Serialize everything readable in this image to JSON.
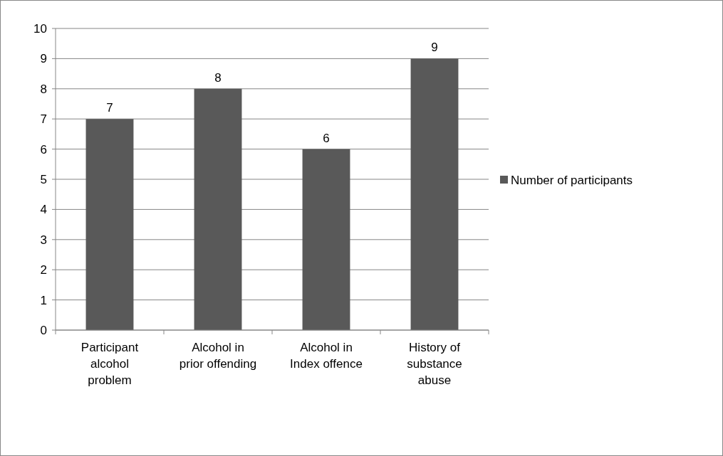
{
  "chart_data": {
    "type": "bar",
    "categories": [
      "Participant alcohol problem",
      "Alcohol in prior offending",
      "Alcohol in Index offence",
      "History of substance abuse"
    ],
    "series": [
      {
        "name": "Number of participants",
        "color": "#595959",
        "values": [
          7,
          8,
          6,
          9
        ]
      }
    ],
    "ylim": [
      0,
      10
    ],
    "yticks": [
      0,
      1,
      2,
      3,
      4,
      5,
      6,
      7,
      8,
      9,
      10
    ],
    "grid": "y",
    "legend": "right",
    "data_labels": true
  }
}
